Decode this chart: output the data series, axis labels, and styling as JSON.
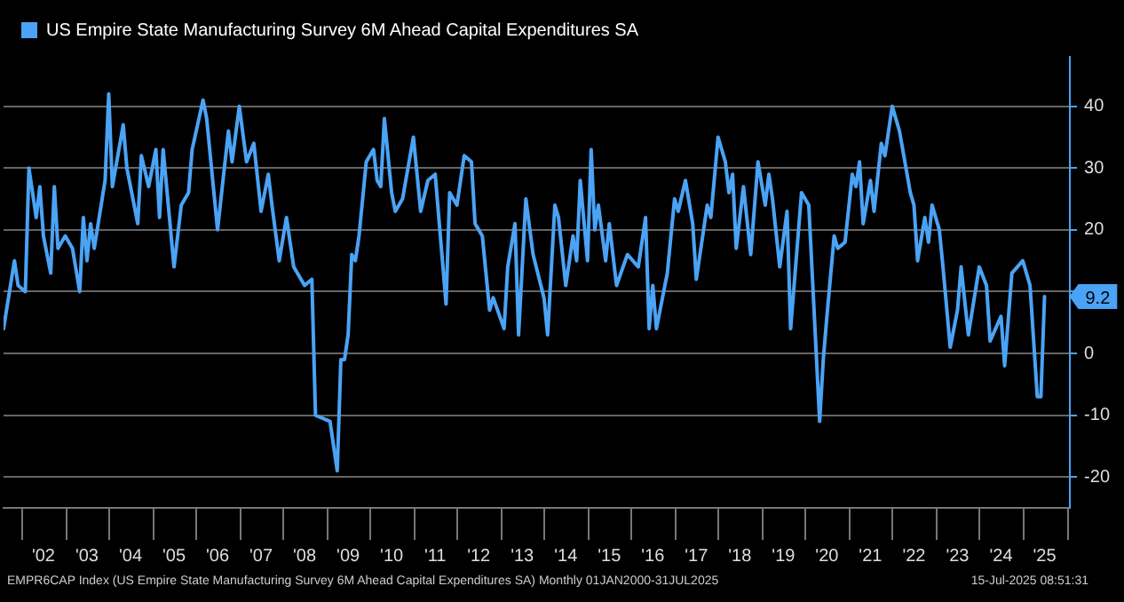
{
  "chart_data": {
    "type": "line",
    "x": [
      "2001-08",
      "2001-11",
      "2001-12",
      "2002-02",
      "2002-03",
      "2002-05",
      "2002-06",
      "2002-07",
      "2002-09",
      "2002-10",
      "2002-11",
      "2003-01",
      "2003-03",
      "2003-05",
      "2003-06",
      "2003-07",
      "2003-08",
      "2003-09",
      "2003-12",
      "2004-01",
      "2004-02",
      "2004-05",
      "2004-06",
      "2004-09",
      "2004-10",
      "2004-12",
      "2005-02",
      "2005-03",
      "2005-04",
      "2005-07",
      "2005-09",
      "2005-11",
      "2005-12",
      "2006-03",
      "2006-04",
      "2006-07",
      "2006-10",
      "2006-11",
      "2007-01",
      "2007-03",
      "2007-05",
      "2007-07",
      "2007-09",
      "2007-10",
      "2007-12",
      "2008-02",
      "2008-04",
      "2008-07",
      "2008-09",
      "2008-10",
      "2009-02",
      "2009-04",
      "2009-05",
      "2009-06",
      "2009-07",
      "2009-08",
      "2009-09",
      "2009-10",
      "2009-12",
      "2010-02",
      "2010-03",
      "2010-04",
      "2010-05",
      "2010-07",
      "2010-08",
      "2010-10",
      "2011-01",
      "2011-03",
      "2011-05",
      "2011-07",
      "2011-08",
      "2011-10",
      "2011-11",
      "2012-01",
      "2012-03",
      "2012-05",
      "2012-06",
      "2012-08",
      "2012-09",
      "2012-10",
      "2012-11",
      "2013-02",
      "2013-03",
      "2013-05",
      "2013-06",
      "2013-08",
      "2013-10",
      "2014-01",
      "2014-02",
      "2014-04",
      "2014-05",
      "2014-07",
      "2014-09",
      "2014-10",
      "2014-11",
      "2015-01",
      "2015-02",
      "2015-03",
      "2015-04",
      "2015-06",
      "2015-07",
      "2015-09",
      "2015-12",
      "2016-03",
      "2016-05",
      "2016-06",
      "2016-07",
      "2016-08",
      "2016-11",
      "2017-01",
      "2017-02",
      "2017-04",
      "2017-06",
      "2017-07",
      "2017-10",
      "2017-11",
      "2018-01",
      "2018-03",
      "2018-04",
      "2018-05",
      "2018-06",
      "2018-08",
      "2018-10",
      "2018-12",
      "2019-02",
      "2019-03",
      "2019-04",
      "2019-06",
      "2019-08",
      "2019-09",
      "2019-12",
      "2020-02",
      "2020-05",
      "2020-06",
      "2020-07",
      "2020-09",
      "2020-10",
      "2020-12",
      "2021-02",
      "2021-03",
      "2021-04",
      "2021-05",
      "2021-07",
      "2021-08",
      "2021-10",
      "2021-11",
      "2022-01",
      "2022-03",
      "2022-06",
      "2022-07",
      "2022-08",
      "2022-10",
      "2022-11",
      "2022-12",
      "2023-02",
      "2023-03",
      "2023-05",
      "2023-07",
      "2023-08",
      "2023-10",
      "2024-01",
      "2024-03",
      "2024-04",
      "2024-07",
      "2024-08",
      "2024-10",
      "2025-01",
      "2025-03",
      "2025-05",
      "2025-06",
      "2025-07"
    ],
    "series": [
      {
        "name": "US Empire State Manufacturing Survey 6M Ahead Capital Expenditures SA",
        "color": "#4aa3f5",
        "values": [
          4,
          15,
          11,
          10,
          30,
          22,
          27,
          19,
          13,
          27,
          17,
          19,
          17,
          10,
          22,
          15,
          21,
          17,
          28,
          42,
          27,
          37,
          30,
          21,
          32,
          27,
          33,
          22,
          33,
          14,
          24,
          26,
          33,
          41,
          38,
          20,
          36,
          31,
          40,
          31,
          34,
          23,
          29,
          24,
          15,
          22,
          14,
          11,
          12,
          -10,
          -11,
          -19,
          -1,
          -1,
          3,
          16,
          15,
          19,
          31,
          33,
          28,
          27,
          38,
          26,
          23,
          25,
          35,
          23,
          28,
          29,
          22,
          8,
          26,
          24,
          32,
          31,
          21,
          19,
          13,
          7,
          9,
          4,
          14,
          21,
          3,
          25,
          16,
          9,
          3,
          24,
          22,
          11,
          19,
          15,
          28,
          15,
          33,
          20,
          24,
          15,
          21,
          11,
          16,
          14,
          22,
          4,
          11,
          4,
          13,
          25,
          23,
          28,
          21,
          12,
          24,
          22,
          35,
          31,
          26,
          29,
          17,
          27,
          16,
          31,
          24,
          29,
          25,
          14,
          23,
          4,
          26,
          24,
          -11,
          -1,
          6,
          19,
          17,
          18,
          29,
          27,
          31,
          21,
          28,
          23,
          34,
          32,
          40,
          36,
          26,
          24,
          15,
          22,
          18,
          24,
          20,
          14,
          1,
          7,
          14,
          3,
          14,
          11,
          2,
          6,
          -2,
          13,
          15,
          11,
          -7,
          -7,
          9.2
        ]
      }
    ],
    "xlim": [
      "2001-08",
      "2026-02"
    ],
    "xticks": [
      {
        "value": "2002-07",
        "label": "'02"
      },
      {
        "value": "2003-07",
        "label": "'03"
      },
      {
        "value": "2004-07",
        "label": "'04"
      },
      {
        "value": "2005-07",
        "label": "'05"
      },
      {
        "value": "2006-07",
        "label": "'06"
      },
      {
        "value": "2007-07",
        "label": "'07"
      },
      {
        "value": "2008-07",
        "label": "'08"
      },
      {
        "value": "2009-07",
        "label": "'09"
      },
      {
        "value": "2010-07",
        "label": "'10"
      },
      {
        "value": "2011-07",
        "label": "'11"
      },
      {
        "value": "2012-07",
        "label": "'12"
      },
      {
        "value": "2013-07",
        "label": "'13"
      },
      {
        "value": "2014-07",
        "label": "'14"
      },
      {
        "value": "2015-07",
        "label": "'15"
      },
      {
        "value": "2016-07",
        "label": "'16"
      },
      {
        "value": "2017-07",
        "label": "'17"
      },
      {
        "value": "2018-07",
        "label": "'18"
      },
      {
        "value": "2019-07",
        "label": "'19"
      },
      {
        "value": "2020-07",
        "label": "'20"
      },
      {
        "value": "2021-07",
        "label": "'21"
      },
      {
        "value": "2022-07",
        "label": "'22"
      },
      {
        "value": "2023-07",
        "label": "'23"
      },
      {
        "value": "2024-07",
        "label": "'24"
      },
      {
        "value": "2025-07",
        "label": "'25"
      }
    ],
    "ylim": [
      -25,
      48
    ],
    "yticks": [
      -20,
      -10,
      0,
      {
        "value": 10,
        "label": null
      },
      20,
      30,
      40
    ],
    "grid": "y",
    "legend": "top left",
    "marker": "none",
    "line_style": "solid",
    "annotations": [
      {
        "text": "9.2",
        "x": "2025-07",
        "y": 9.2
      },
      "EMPR6CAP Index (US Empire State Manufacturing Survey 6M Ahead Capital Expenditures SA) Monthly 01JAN2000-31JUL2025",
      "15-Jul-2025 08:51:31"
    ]
  }
}
